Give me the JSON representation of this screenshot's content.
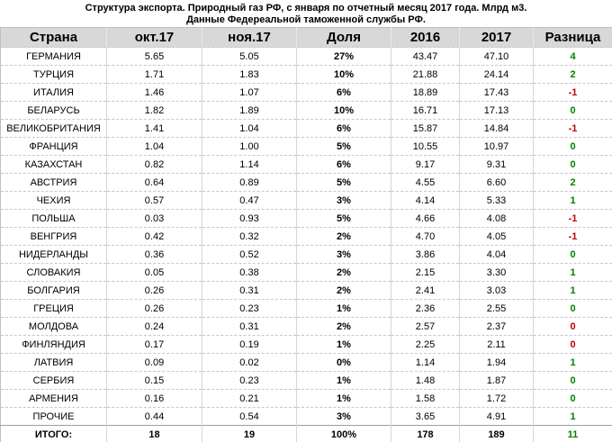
{
  "header": {
    "title": "Структура экспорта. Природный газ РФ, с января по отчетный месяц 2017 года. Млрд м3.",
    "subtitle": "Данные Федереальной таможенной службы РФ."
  },
  "colors": {
    "positive": "#008000",
    "negative": "#c00000",
    "header_bg": "#d8d8d8",
    "text": "#000000"
  },
  "chart_data": {
    "type": "table",
    "title": "Структура экспорта. Природный газ РФ, с января по отчетный месяц 2017 года. Млрд м3.",
    "subtitle": "Данные Федереальной таможенной службы РФ.",
    "columns": [
      "Страна",
      "окт.17",
      "ноя.17",
      "Доля",
      "2016",
      "2017",
      "Разница"
    ],
    "column_keys": [
      "country",
      "oct17",
      "nov17",
      "share",
      "y2016",
      "y2017",
      "diff"
    ],
    "rows": [
      {
        "country": "ГЕРМАНИЯ",
        "oct17": "5.65",
        "nov17": "5.05",
        "share": "27%",
        "y2016": "43.47",
        "y2017": "47.10",
        "diff": "4",
        "diff_sign": "pos"
      },
      {
        "country": "ТУРЦИЯ",
        "oct17": "1.71",
        "nov17": "1.83",
        "share": "10%",
        "y2016": "21.88",
        "y2017": "24.14",
        "diff": "2",
        "diff_sign": "pos"
      },
      {
        "country": "ИТАЛИЯ",
        "oct17": "1.46",
        "nov17": "1.07",
        "share": "6%",
        "y2016": "18.89",
        "y2017": "17.43",
        "diff": "-1",
        "diff_sign": "neg"
      },
      {
        "country": "БЕЛАРУСЬ",
        "oct17": "1.82",
        "nov17": "1.89",
        "share": "10%",
        "y2016": "16.71",
        "y2017": "17.13",
        "diff": "0",
        "diff_sign": "pos"
      },
      {
        "country": "ВЕЛИКОБРИТАНИЯ",
        "oct17": "1.41",
        "nov17": "1.04",
        "share": "6%",
        "y2016": "15.87",
        "y2017": "14.84",
        "diff": "-1",
        "diff_sign": "neg"
      },
      {
        "country": "ФРАНЦИЯ",
        "oct17": "1.04",
        "nov17": "1.00",
        "share": "5%",
        "y2016": "10.55",
        "y2017": "10.97",
        "diff": "0",
        "diff_sign": "pos"
      },
      {
        "country": "КАЗАХСТАН",
        "oct17": "0.82",
        "nov17": "1.14",
        "share": "6%",
        "y2016": "9.17",
        "y2017": "9.31",
        "diff": "0",
        "diff_sign": "pos"
      },
      {
        "country": "АВСТРИЯ",
        "oct17": "0.64",
        "nov17": "0.89",
        "share": "5%",
        "y2016": "4.55",
        "y2017": "6.60",
        "diff": "2",
        "diff_sign": "pos"
      },
      {
        "country": "ЧЕХИЯ",
        "oct17": "0.57",
        "nov17": "0.47",
        "share": "3%",
        "y2016": "4.14",
        "y2017": "5.33",
        "diff": "1",
        "diff_sign": "pos"
      },
      {
        "country": "ПОЛЬША",
        "oct17": "0.03",
        "nov17": "0.93",
        "share": "5%",
        "y2016": "4.66",
        "y2017": "4.08",
        "diff": "-1",
        "diff_sign": "neg"
      },
      {
        "country": "ВЕНГРИЯ",
        "oct17": "0.42",
        "nov17": "0.32",
        "share": "2%",
        "y2016": "4.70",
        "y2017": "4.05",
        "diff": "-1",
        "diff_sign": "neg"
      },
      {
        "country": "НИДЕРЛАНДЫ",
        "oct17": "0.36",
        "nov17": "0.52",
        "share": "3%",
        "y2016": "3.86",
        "y2017": "4.04",
        "diff": "0",
        "diff_sign": "pos"
      },
      {
        "country": "СЛОВАКИЯ",
        "oct17": "0.05",
        "nov17": "0.38",
        "share": "2%",
        "y2016": "2.15",
        "y2017": "3.30",
        "diff": "1",
        "diff_sign": "pos"
      },
      {
        "country": "БОЛГАРИЯ",
        "oct17": "0.26",
        "nov17": "0.31",
        "share": "2%",
        "y2016": "2.41",
        "y2017": "3.03",
        "diff": "1",
        "diff_sign": "pos"
      },
      {
        "country": "ГРЕЦИЯ",
        "oct17": "0.26",
        "nov17": "0.23",
        "share": "1%",
        "y2016": "2.36",
        "y2017": "2.55",
        "diff": "0",
        "diff_sign": "pos"
      },
      {
        "country": "МОЛДОВА",
        "oct17": "0.24",
        "nov17": "0.31",
        "share": "2%",
        "y2016": "2.57",
        "y2017": "2.37",
        "diff": "0",
        "diff_sign": "neg"
      },
      {
        "country": "ФИНЛЯНДИЯ",
        "oct17": "0.17",
        "nov17": "0.19",
        "share": "1%",
        "y2016": "2.25",
        "y2017": "2.11",
        "diff": "0",
        "diff_sign": "neg"
      },
      {
        "country": "ЛАТВИЯ",
        "oct17": "0.09",
        "nov17": "0.02",
        "share": "0%",
        "y2016": "1.14",
        "y2017": "1.94",
        "diff": "1",
        "diff_sign": "pos"
      },
      {
        "country": "СЕРБИЯ",
        "oct17": "0.15",
        "nov17": "0.23",
        "share": "1%",
        "y2016": "1.48",
        "y2017": "1.87",
        "diff": "0",
        "diff_sign": "pos"
      },
      {
        "country": "АРМЕНИЯ",
        "oct17": "0.16",
        "nov17": "0.21",
        "share": "1%",
        "y2016": "1.58",
        "y2017": "1.72",
        "diff": "0",
        "diff_sign": "pos"
      },
      {
        "country": "ПРОЧИЕ",
        "oct17": "0.44",
        "nov17": "0.54",
        "share": "3%",
        "y2016": "3.65",
        "y2017": "4.91",
        "diff": "1",
        "diff_sign": "pos"
      }
    ],
    "totals": {
      "country": "ИТОГО:",
      "oct17": "18",
      "nov17": "19",
      "share": "100%",
      "y2016": "178",
      "y2017": "189",
      "diff": "11",
      "diff_sign": "pos"
    }
  }
}
